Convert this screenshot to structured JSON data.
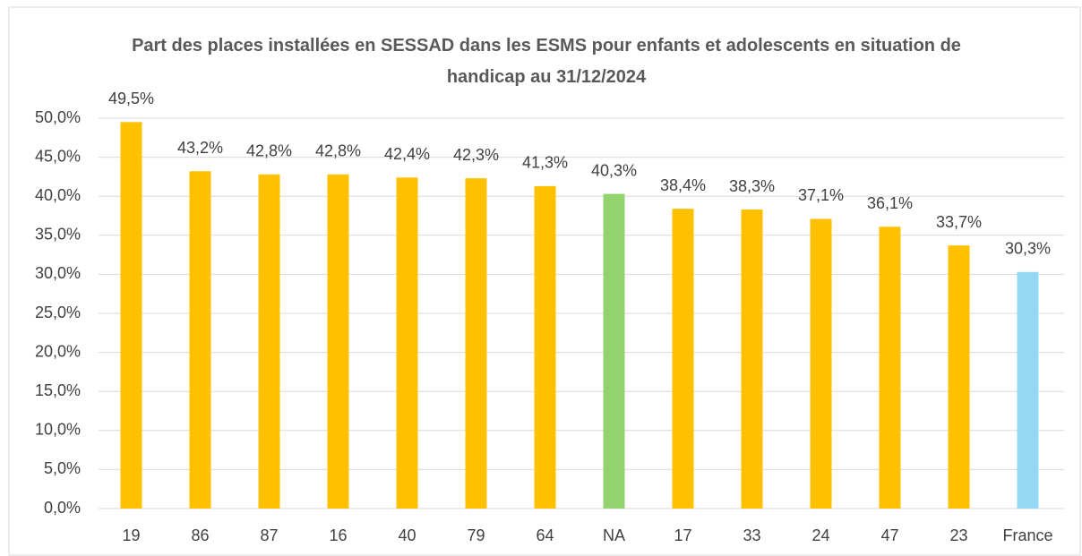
{
  "chart_data": {
    "type": "bar",
    "title": "Part des places installées en SESSAD dans les ESMS pour enfants et adolescents en situation de handicap au 31/12/2024",
    "categories": [
      "19",
      "86",
      "87",
      "16",
      "40",
      "79",
      "64",
      "NA",
      "17",
      "33",
      "24",
      "47",
      "23",
      "France"
    ],
    "values": [
      49.5,
      43.2,
      42.8,
      42.8,
      42.4,
      42.3,
      41.3,
      40.3,
      38.4,
      38.3,
      37.1,
      36.1,
      33.7,
      30.3
    ],
    "value_labels": [
      "49,5%",
      "43,2%",
      "42,8%",
      "42,8%",
      "42,4%",
      "42,3%",
      "41,3%",
      "40,3%",
      "38,4%",
      "38,3%",
      "37,1%",
      "36,1%",
      "33,7%",
      "30,3%"
    ],
    "colors": [
      "#FFC000",
      "#FFC000",
      "#FFC000",
      "#FFC000",
      "#FFC000",
      "#FFC000",
      "#FFC000",
      "#92D36E",
      "#FFC000",
      "#FFC000",
      "#FFC000",
      "#FFC000",
      "#FFC000",
      "#96D8F4"
    ],
    "ylim": [
      0,
      50
    ],
    "yticks": [
      {
        "value": 0,
        "label": "0,0%"
      },
      {
        "value": 5,
        "label": "5,0%"
      },
      {
        "value": 10,
        "label": "10,0%"
      },
      {
        "value": 15,
        "label": "15,0%"
      },
      {
        "value": 20,
        "label": "20,0%"
      },
      {
        "value": 25,
        "label": "25,0%"
      },
      {
        "value": 30,
        "label": "30,0%"
      },
      {
        "value": 35,
        "label": "35,0%"
      },
      {
        "value": 40,
        "label": "40,0%"
      },
      {
        "value": 45,
        "label": "45,0%"
      },
      {
        "value": 50,
        "label": "50,0%"
      }
    ],
    "grid": true
  }
}
